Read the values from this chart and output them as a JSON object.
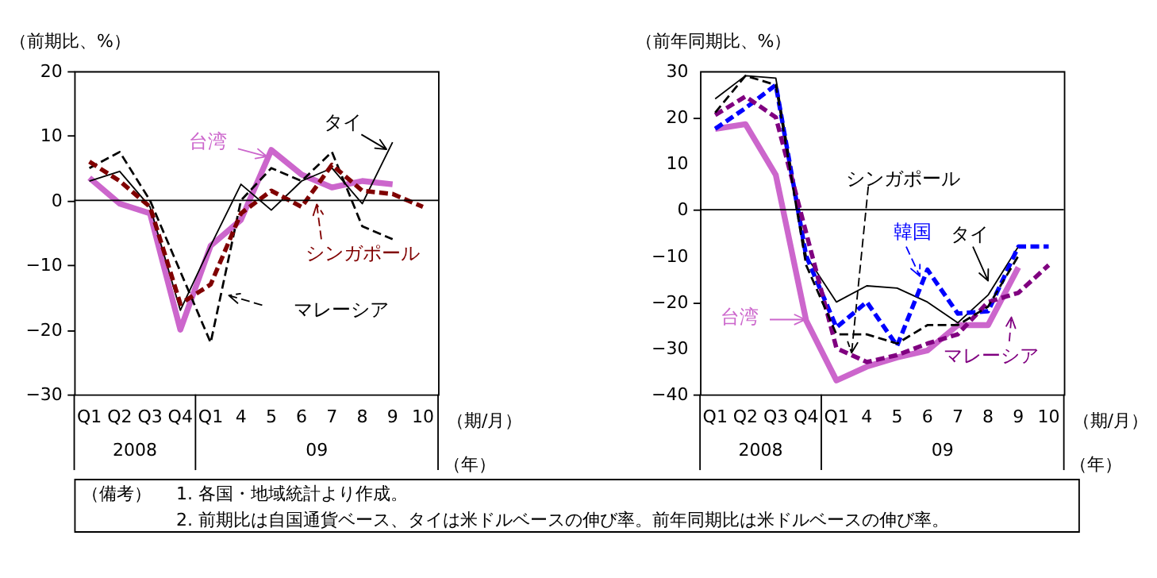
{
  "chart_data": [
    {
      "type": "line",
      "ylabel": "（前期比、%）",
      "categories": [
        "Q1",
        "Q2",
        "Q3",
        "Q4",
        "Q1",
        "4",
        "5",
        "6",
        "7",
        "8",
        "9",
        "10"
      ],
      "ylim": [
        -30,
        20
      ],
      "yticks": [
        -30,
        -20,
        -10,
        0,
        10,
        20
      ],
      "series": [
        {
          "name": "台湾",
          "color": "#cc66cc",
          "line_style": "solid",
          "values": [
            3.5,
            -0.5,
            -2,
            -20,
            -7,
            -3,
            7.8,
            4,
            2,
            3,
            2.5,
            null
          ]
        },
        {
          "name": "タイ",
          "color": "#000000",
          "line_style": "solid",
          "values": [
            3,
            4.5,
            -1,
            -17,
            -7,
            2.5,
            -1.5,
            3,
            5,
            -0.5,
            9,
            null
          ]
        },
        {
          "name": "マレーシア",
          "color": "#000000",
          "line_style": "dashed",
          "values": [
            5,
            7.5,
            0,
            -11,
            -22,
            0,
            5,
            3,
            7.5,
            -4,
            -6,
            null
          ]
        },
        {
          "name": "シンガポール",
          "color": "#800000",
          "line_style": "dashed",
          "values": [
            6,
            3,
            -1,
            -16,
            -13,
            -2,
            1.5,
            -1,
            5.5,
            1.5,
            1,
            -1
          ]
        }
      ],
      "ref_lines": [
        {
          "axis": "y",
          "value": 0
        }
      ],
      "annotations": [
        "2008",
        "09",
        "（期/月）",
        "（年）"
      ]
    },
    {
      "type": "line",
      "ylabel": "（前年同期比、%）",
      "categories": [
        "Q1",
        "Q2",
        "Q3",
        "Q4",
        "Q1",
        "4",
        "5",
        "6",
        "7",
        "8",
        "9",
        "10"
      ],
      "ylim": [
        -40,
        30
      ],
      "yticks": [
        -40,
        -30,
        -20,
        -10,
        0,
        10,
        20,
        30
      ],
      "series": [
        {
          "name": "台湾",
          "color": "#cc66cc",
          "line_style": "solid",
          "values": [
            17.5,
            18.5,
            7.5,
            -24,
            -37,
            -34,
            -32,
            -30.5,
            -25,
            -25,
            -12.5,
            null
          ]
        },
        {
          "name": "タイ",
          "color": "#000000",
          "line_style": "solid",
          "values": [
            24,
            29,
            28.5,
            -10,
            -20,
            -16.5,
            -17,
            -20,
            -24.5,
            -18.5,
            -8,
            null
          ]
        },
        {
          "name": "韓国",
          "color": "#0000ff",
          "line_style": "dashed",
          "values": [
            17.5,
            22,
            27,
            -10,
            -25.5,
            -20,
            -29.5,
            -13,
            -22.5,
            -22,
            -8,
            -8
          ]
        },
        {
          "name": "マレーシア",
          "color": "#800080",
          "line_style": "dashed",
          "values": [
            20.5,
            24.5,
            20,
            -5,
            -30,
            -33,
            -31.5,
            -29,
            -27,
            -20,
            -18,
            -12
          ]
        },
        {
          "name": "シンガポール",
          "color": "#000000",
          "line_style": "dashed",
          "values": [
            21,
            29,
            27,
            -12,
            -27,
            -27,
            -29,
            -25,
            -25,
            -21,
            -10,
            null
          ]
        }
      ],
      "ref_lines": [
        {
          "axis": "y",
          "value": 0
        }
      ],
      "annotations": [
        "2008",
        "09",
        "（期/月）",
        "（年）"
      ]
    },
    {
      "type": "other",
      "annotations": [
        "（備考）",
        "1. 各国・地域統計より作成。",
        "2. 前期比は自国通貨ベース、タイは米ドルベースの伸び率。前年同期比は米ドルベースの伸び率。"
      ]
    }
  ]
}
